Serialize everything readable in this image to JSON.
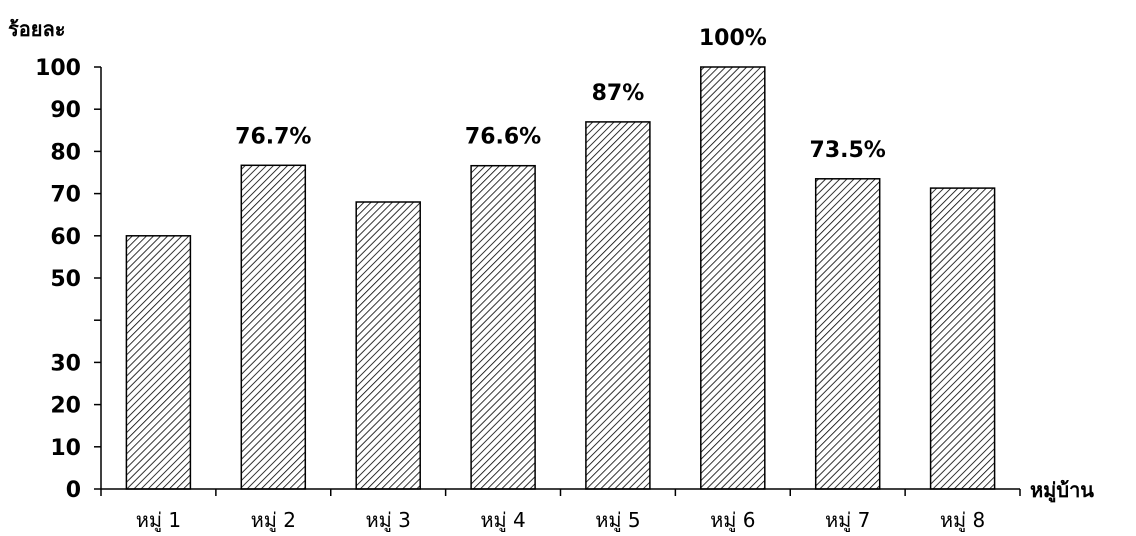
{
  "chart_data": {
    "type": "bar",
    "ylabel": "ร้อยละ",
    "xlabel": "หมู่บ้าน",
    "categories": [
      "หมู่ 1",
      "หมู่ 2",
      "หมู่ 3",
      "หมู่ 4",
      "หมู่ 5",
      "หมู่ 6",
      "หมู่ 7",
      "หมู่ 8"
    ],
    "values": [
      60,
      76.7,
      68,
      76.6,
      87,
      100,
      73.5,
      71.3
    ],
    "data_labels": [
      "",
      "76.7%",
      "",
      "76.6%",
      "87%",
      "100%",
      "73.5%",
      ""
    ],
    "ylim": [
      0,
      100
    ],
    "yticks": [
      "0",
      "10",
      "20",
      "30",
      "",
      "50",
      "60",
      "70",
      "80",
      "90",
      "100"
    ],
    "bar_fill": "hatched",
    "grid": false,
    "legend": "none"
  }
}
